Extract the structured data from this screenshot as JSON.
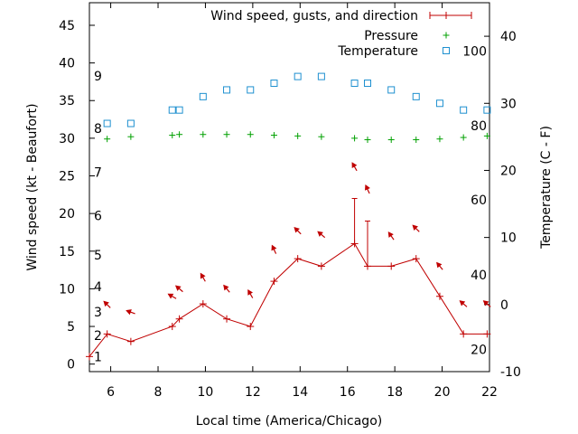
{
  "chart_data": {
    "type": "line",
    "xlabel": "Local time (America/Chicago)",
    "ylabel_left": "Wind speed (kt - Beaufort)",
    "ylabel_right": "Temperature (C - F)",
    "xlim": [
      5.1,
      22
    ],
    "ylim_left": [
      -1,
      48
    ],
    "ylim_right": [
      -10,
      45
    ],
    "x_ticks": [
      6,
      8,
      10,
      12,
      14,
      16,
      18,
      20,
      22
    ],
    "y_left_ticks": [
      0,
      5,
      10,
      15,
      20,
      25,
      30,
      35,
      40,
      45
    ],
    "y_right_ticks": [
      -10,
      0,
      10,
      20,
      30,
      40
    ],
    "beaufort_labels": [
      {
        "text": "1",
        "y": 1
      },
      {
        "text": "2",
        "y": 3.8
      },
      {
        "text": "3",
        "y": 6.9
      },
      {
        "text": "4",
        "y": 10.3
      },
      {
        "text": "5",
        "y": 14.5
      },
      {
        "text": "6",
        "y": 19.7
      },
      {
        "text": "7",
        "y": 25.5
      },
      {
        "text": "8",
        "y": 31.3
      },
      {
        "text": "9",
        "y": 38.3
      }
    ],
    "fahrenheit_labels": [
      {
        "text": "20",
        "y": -6.7
      },
      {
        "text": "40",
        "y": 4.4
      },
      {
        "text": "60",
        "y": 15.6
      },
      {
        "text": "80",
        "y": 26.7
      },
      {
        "text": "100",
        "y": 37.8
      }
    ],
    "series": [
      {
        "name": "Wind speed, gusts, and direction",
        "color": "#c00000",
        "x": [
          5.1,
          5.85,
          6.85,
          8.6,
          8.9,
          9.9,
          10.9,
          11.9,
          12.9,
          13.9,
          14.9,
          16.3,
          16.85,
          17.85,
          18.9,
          19.9,
          20.9,
          21.9
        ],
        "y": [
          1,
          4,
          3,
          5,
          6,
          8,
          6,
          5,
          11,
          14,
          13,
          16,
          13,
          13,
          14,
          9,
          4,
          4
        ],
        "gusts": [
          {
            "x": 16.3,
            "y": 22
          },
          {
            "x": 16.85,
            "y": 19
          }
        ],
        "arrows": [
          {
            "x": 5.85,
            "y": 7.9,
            "angle": 135
          },
          {
            "x": 6.85,
            "y": 6.9,
            "angle": 160
          },
          {
            "x": 8.6,
            "y": 9,
            "angle": 150
          },
          {
            "x": 8.9,
            "y": 10,
            "angle": 140
          },
          {
            "x": 9.9,
            "y": 11.5,
            "angle": 120
          },
          {
            "x": 10.9,
            "y": 10,
            "angle": 130
          },
          {
            "x": 11.9,
            "y": 9.3,
            "angle": 120
          },
          {
            "x": 12.9,
            "y": 15.2,
            "angle": 115
          },
          {
            "x": 13.9,
            "y": 17.7,
            "angle": 135
          },
          {
            "x": 14.9,
            "y": 17.2,
            "angle": 140
          },
          {
            "x": 16.3,
            "y": 26.2,
            "angle": 120
          },
          {
            "x": 16.85,
            "y": 23.2,
            "angle": 115
          },
          {
            "x": 17.85,
            "y": 17,
            "angle": 125
          },
          {
            "x": 18.9,
            "y": 18,
            "angle": 135
          },
          {
            "x": 19.9,
            "y": 13,
            "angle": 130
          },
          {
            "x": 20.9,
            "y": 8,
            "angle": 140
          },
          {
            "x": 21.9,
            "y": 8,
            "angle": 140
          }
        ]
      },
      {
        "name": "Pressure",
        "color": "#00a000",
        "x": [
          5.85,
          6.85,
          8.6,
          8.9,
          9.9,
          10.9,
          11.9,
          12.9,
          13.9,
          14.9,
          16.3,
          16.85,
          17.85,
          18.9,
          19.9,
          20.9,
          21.9
        ],
        "y": [
          29.9,
          30.2,
          30.4,
          30.5,
          30.5,
          30.5,
          30.5,
          30.4,
          30.3,
          30.2,
          30.0,
          29.8,
          29.8,
          29.8,
          29.9,
          30.1,
          30.3
        ]
      },
      {
        "name": "Temperature",
        "color": "#1e90d0",
        "x": [
          5.85,
          6.85,
          8.6,
          8.9,
          9.9,
          10.9,
          11.9,
          12.9,
          13.9,
          14.9,
          16.3,
          16.85,
          17.85,
          18.9,
          19.9,
          20.9,
          21.9
        ],
        "y": [
          27,
          27,
          29,
          29,
          31,
          32,
          32,
          33,
          34,
          34,
          33,
          33,
          32,
          31,
          30,
          29,
          29
        ]
      }
    ],
    "legend_position": "top-right"
  }
}
